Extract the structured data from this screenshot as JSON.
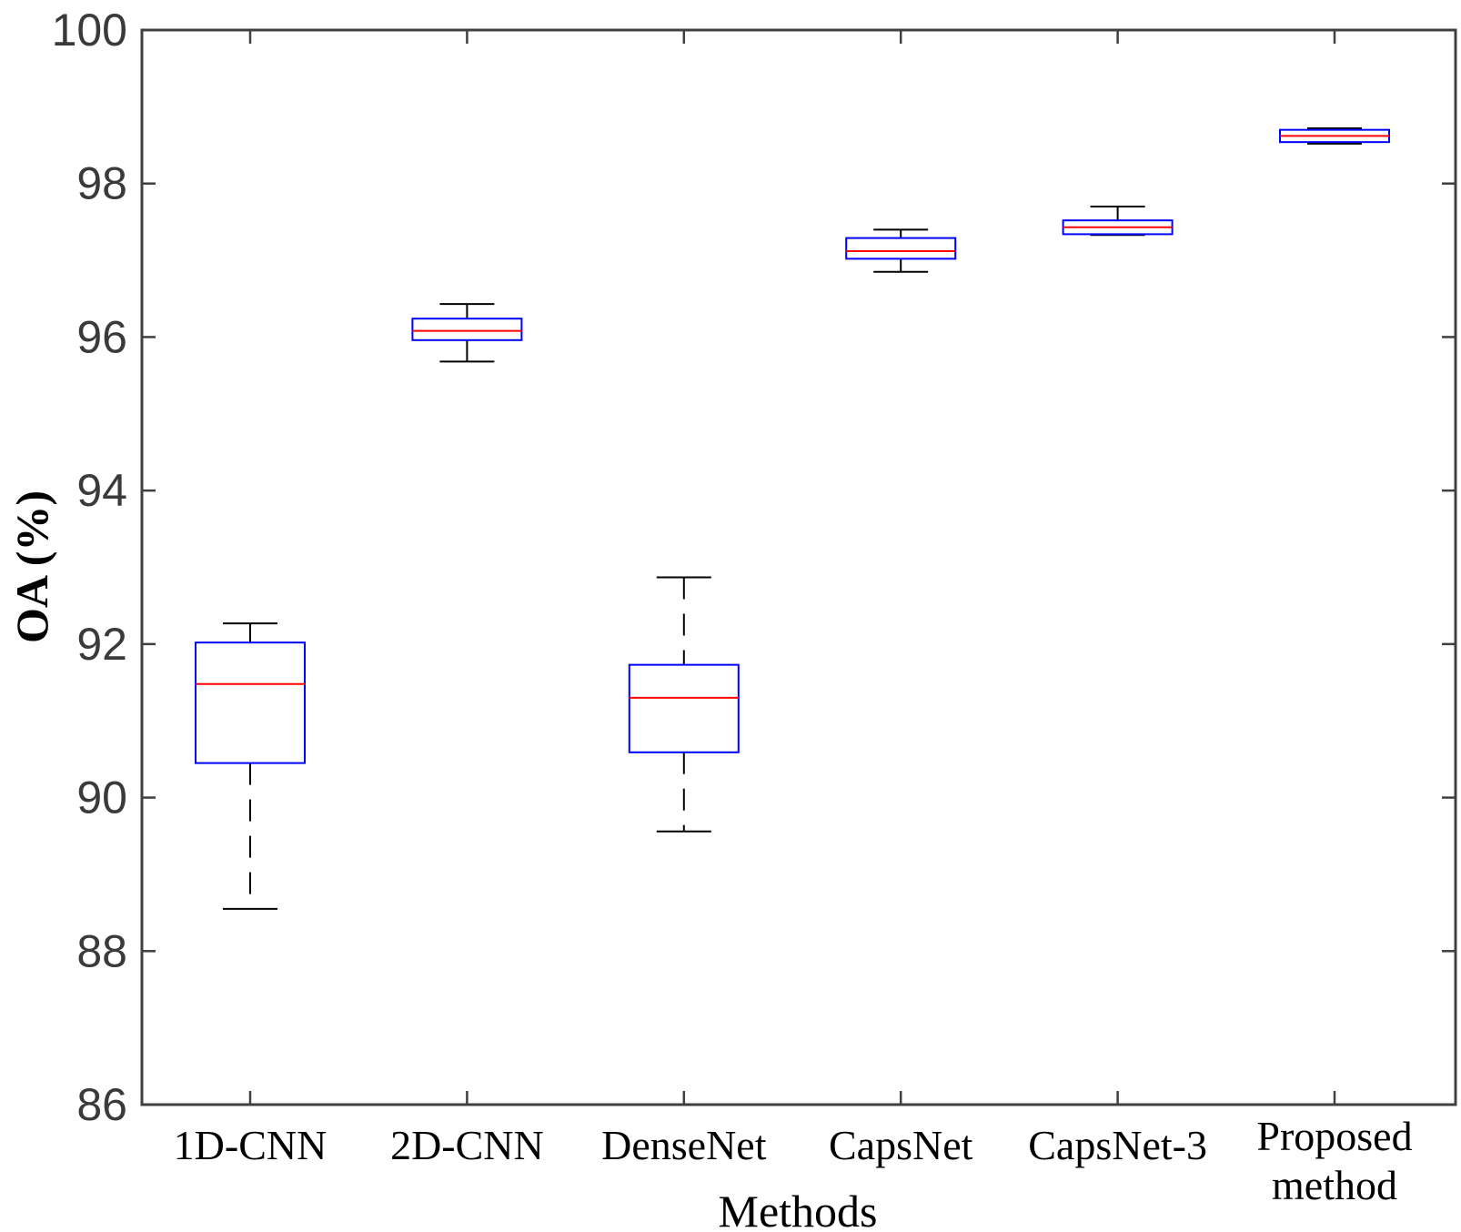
{
  "chart_data": {
    "type": "boxplot",
    "xlabel": "Methods",
    "ylabel": "OA (%)",
    "ylim": [
      86,
      100
    ],
    "yticks": [
      "86",
      "88",
      "90",
      "92",
      "94",
      "96",
      "98",
      "100"
    ],
    "grid": false,
    "colors": {
      "box": "#0000ff",
      "median": "#ff0000",
      "whisker": "#000000",
      "axis": "#404040"
    },
    "boxes": [
      {
        "label": [
          "1D-CNN"
        ],
        "min": 88.55,
        "q1": 90.45,
        "median": 91.48,
        "q3": 92.02,
        "max": 92.27
      },
      {
        "label": [
          "2D-CNN"
        ],
        "min": 95.68,
        "q1": 95.96,
        "median": 96.08,
        "q3": 96.24,
        "max": 96.43
      },
      {
        "label": [
          "DenseNet"
        ],
        "min": 89.56,
        "q1": 90.59,
        "median": 91.3,
        "q3": 91.73,
        "max": 92.87
      },
      {
        "label": [
          "CapsNet"
        ],
        "min": 96.85,
        "q1": 97.02,
        "median": 97.12,
        "q3": 97.29,
        "max": 97.4
      },
      {
        "label": [
          "CapsNet-3"
        ],
        "min": 97.33,
        "q1": 97.34,
        "median": 97.43,
        "q3": 97.52,
        "max": 97.7
      },
      {
        "label": [
          "Proposed",
          "method"
        ],
        "min": 98.52,
        "q1": 98.54,
        "median": 98.62,
        "q3": 98.7,
        "max": 98.72
      }
    ]
  }
}
